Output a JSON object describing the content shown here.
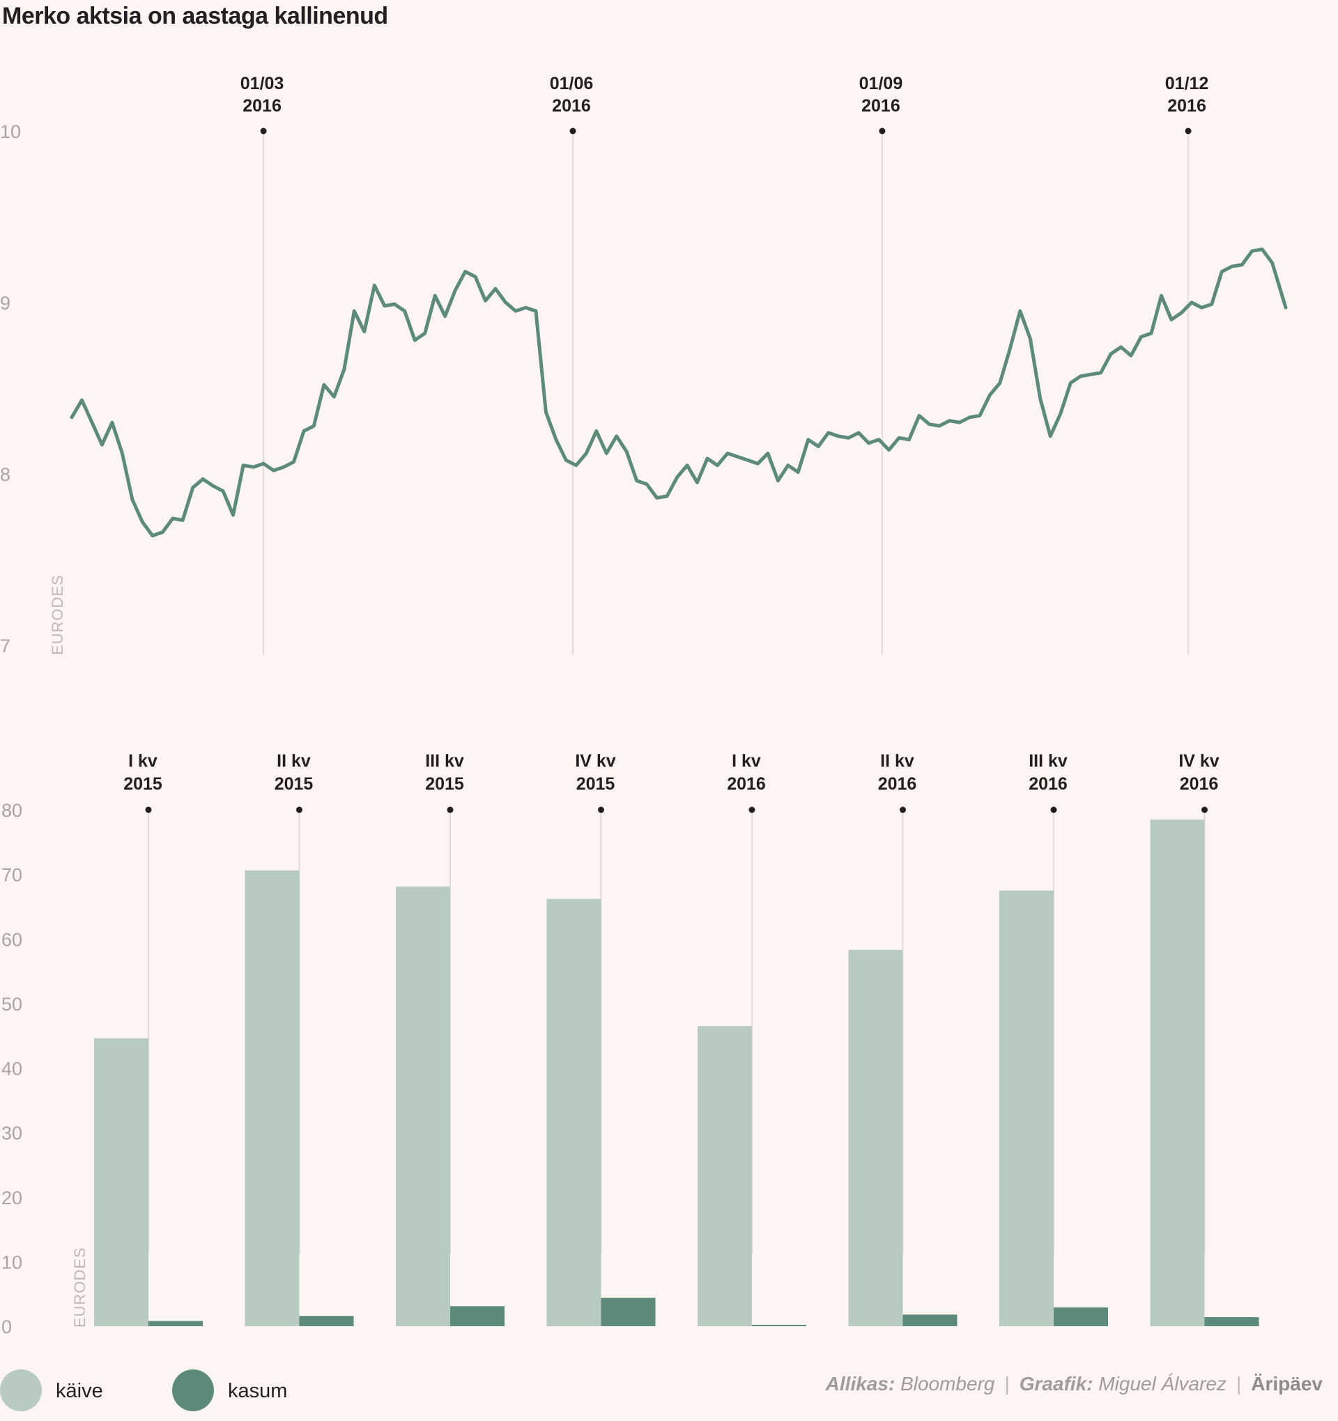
{
  "title": "Merko aktsia on aastaga kallinenud",
  "colors": {
    "background": "#fdf5f2",
    "line": "#5c8a7b",
    "kaive": "#b7cbc1",
    "kasum": "#5c8a7b",
    "grid": "#e4dcd8",
    "text": "#231f20",
    "muted": "#a9a5a2"
  },
  "chart_data": [
    {
      "type": "line",
      "title": "Merko aktsia on aastaga kallinenud",
      "ylabel": "EURODES",
      "ylim": [
        7,
        10
      ],
      "yticks": [
        "10",
        "9",
        "8",
        "7"
      ],
      "xlim": [
        "2016-01-04",
        "2016-12-30"
      ],
      "markers": [
        {
          "date": "2016-03-01",
          "line1": "01/03",
          "line2": "2016"
        },
        {
          "date": "2016-06-01",
          "line1": "01/06",
          "line2": "2016"
        },
        {
          "date": "2016-09-01",
          "line1": "01/09",
          "line2": "2016"
        },
        {
          "date": "2016-12-01",
          "line1": "01/12",
          "line2": "2016"
        }
      ],
      "series": [
        {
          "dates": [
            "2016-01-04",
            "2016-01-07",
            "2016-01-10",
            "2016-01-13",
            "2016-01-16",
            "2016-01-19",
            "2016-01-22",
            "2016-01-25",
            "2016-01-28",
            "2016-01-31",
            "2016-02-03",
            "2016-02-06",
            "2016-02-09",
            "2016-02-12",
            "2016-02-15",
            "2016-02-18",
            "2016-02-21",
            "2016-02-24",
            "2016-02-27",
            "2016-03-01",
            "2016-03-04",
            "2016-03-07",
            "2016-03-10",
            "2016-03-13",
            "2016-03-16",
            "2016-03-19",
            "2016-03-22",
            "2016-03-25",
            "2016-03-28",
            "2016-03-31",
            "2016-04-03",
            "2016-04-06",
            "2016-04-09",
            "2016-04-12",
            "2016-04-15",
            "2016-04-18",
            "2016-04-21",
            "2016-04-24",
            "2016-04-27",
            "2016-04-30",
            "2016-05-03",
            "2016-05-06",
            "2016-05-09",
            "2016-05-12",
            "2016-05-15",
            "2016-05-18",
            "2016-05-21",
            "2016-05-24",
            "2016-05-27",
            "2016-05-30",
            "2016-06-02",
            "2016-06-05",
            "2016-06-08",
            "2016-06-11",
            "2016-06-14",
            "2016-06-17",
            "2016-06-20",
            "2016-06-23",
            "2016-06-26",
            "2016-06-29",
            "2016-07-02",
            "2016-07-05",
            "2016-07-08",
            "2016-07-11",
            "2016-07-14",
            "2016-07-17",
            "2016-07-20",
            "2016-07-23",
            "2016-07-26",
            "2016-07-29",
            "2016-08-01",
            "2016-08-04",
            "2016-08-07",
            "2016-08-10",
            "2016-08-13",
            "2016-08-16",
            "2016-08-19",
            "2016-08-22",
            "2016-08-25",
            "2016-08-28",
            "2016-08-31",
            "2016-09-03",
            "2016-09-06",
            "2016-09-09",
            "2016-09-12",
            "2016-09-15",
            "2016-09-18",
            "2016-09-21",
            "2016-09-24",
            "2016-09-27",
            "2016-09-30",
            "2016-10-03",
            "2016-10-06",
            "2016-10-09",
            "2016-10-12",
            "2016-10-15",
            "2016-10-18",
            "2016-10-21",
            "2016-10-24",
            "2016-10-27",
            "2016-10-30",
            "2016-11-02",
            "2016-11-05",
            "2016-11-08",
            "2016-11-11",
            "2016-11-14",
            "2016-11-17",
            "2016-11-20",
            "2016-11-23",
            "2016-11-26",
            "2016-11-29",
            "2016-12-02",
            "2016-12-05",
            "2016-12-08",
            "2016-12-11",
            "2016-12-14",
            "2016-12-17",
            "2016-12-20",
            "2016-12-23",
            "2016-12-26",
            "2016-12-30"
          ],
          "values": [
            8.33,
            8.43,
            8.3,
            8.17,
            8.3,
            8.12,
            7.85,
            7.72,
            7.64,
            7.66,
            7.74,
            7.73,
            7.92,
            7.97,
            7.93,
            7.9,
            7.76,
            8.05,
            8.04,
            8.06,
            8.02,
            8.04,
            8.07,
            8.25,
            8.28,
            8.52,
            8.45,
            8.61,
            8.95,
            8.83,
            9.1,
            8.98,
            8.99,
            8.95,
            8.78,
            8.82,
            9.04,
            8.92,
            9.07,
            9.18,
            9.15,
            9.01,
            9.08,
            9.0,
            8.95,
            8.97,
            8.95,
            8.36,
            8.2,
            8.08,
            8.05,
            8.12,
            8.25,
            8.12,
            8.22,
            8.13,
            7.96,
            7.94,
            7.86,
            7.87,
            7.98,
            8.05,
            7.95,
            8.09,
            8.05,
            8.12,
            8.1,
            8.08,
            8.06,
            8.12,
            7.96,
            8.05,
            8.01,
            8.2,
            8.16,
            8.24,
            8.22,
            8.21,
            8.24,
            8.18,
            8.2,
            8.14,
            8.21,
            8.2,
            8.34,
            8.29,
            8.28,
            8.31,
            8.3,
            8.33,
            8.34,
            8.46,
            8.53,
            8.73,
            8.95,
            8.79,
            8.44,
            8.22,
            8.35,
            8.53,
            8.57,
            8.58,
            8.59,
            8.7,
            8.74,
            8.69,
            8.8,
            8.82,
            9.04,
            8.9,
            8.94,
            9.0,
            8.97,
            8.99,
            9.18,
            9.21,
            9.22,
            9.3,
            9.31,
            9.23,
            8.97
          ]
        }
      ]
    },
    {
      "type": "bar",
      "ylabel": "EURODES",
      "ylim": [
        0,
        80
      ],
      "yticks": [
        "80",
        "70",
        "60",
        "50",
        "40",
        "30",
        "20",
        "10",
        "0"
      ],
      "categories": [
        {
          "line1": "I kv",
          "line2": "2015"
        },
        {
          "line1": "II kv",
          "line2": "2015"
        },
        {
          "line1": "III kv",
          "line2": "2015"
        },
        {
          "line1": "IV kv",
          "line2": "2015"
        },
        {
          "line1": "I kv",
          "line2": "2016"
        },
        {
          "line1": "II kv",
          "line2": "2016"
        },
        {
          "line1": "III kv",
          "line2": "2016"
        },
        {
          "line1": "IV kv",
          "line2": "2016"
        }
      ],
      "series": [
        {
          "name": "käive",
          "values": [
            44.6,
            70.6,
            68.1,
            66.2,
            46.5,
            58.3,
            67.5,
            78.5
          ]
        },
        {
          "name": "kasum",
          "values": [
            0.8,
            1.6,
            3.1,
            4.4,
            0.2,
            1.8,
            2.9,
            1.4
          ]
        }
      ],
      "legend": "bottom-left"
    }
  ],
  "footer": {
    "source_label": "Allikas:",
    "source_value": "Bloomberg",
    "sep1": "|",
    "graphic_label": "Graafik:",
    "graphic_value": "Miguel Álvarez",
    "sep2": "|",
    "brand": "Äripäev"
  }
}
